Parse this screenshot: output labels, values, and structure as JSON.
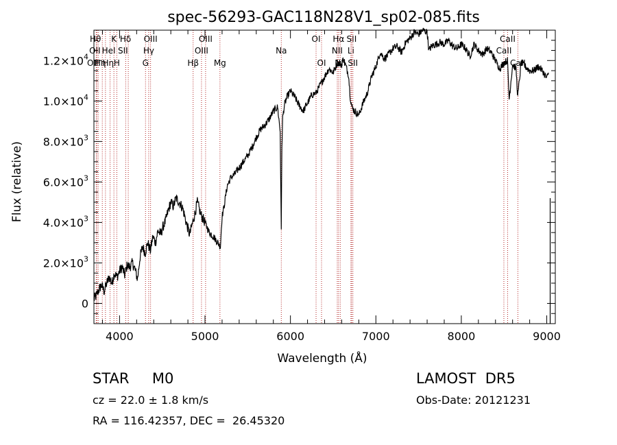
{
  "chart_data": {
    "type": "line",
    "title": "spec-56293-GAC118N28V1_sp02-085.fits",
    "xlabel": "Wavelength (Å)",
    "ylabel": "Flux (relative)",
    "xlim": [
      3700,
      9100
    ],
    "ylim": [
      -1000,
      13500
    ],
    "x_ticks": [
      {
        "value": 4000,
        "label": "4000"
      },
      {
        "value": 5000,
        "label": "5000"
      },
      {
        "value": 6000,
        "label": "6000"
      },
      {
        "value": 7000,
        "label": "7000"
      },
      {
        "value": 8000,
        "label": "8000"
      },
      {
        "value": 9000,
        "label": "9000"
      }
    ],
    "y_ticks": [
      {
        "value": 0,
        "mantissa": "0",
        "exponent": ""
      },
      {
        "value": 2000,
        "mantissa": "2.0×10",
        "exponent": "3"
      },
      {
        "value": 4000,
        "mantissa": "4.0×10",
        "exponent": "3"
      },
      {
        "value": 6000,
        "mantissa": "6.0×10",
        "exponent": "3"
      },
      {
        "value": 8000,
        "mantissa": "8.0×10",
        "exponent": "3"
      },
      {
        "value": 10000,
        "mantissa": "1.0×10",
        "exponent": "4"
      },
      {
        "value": 12000,
        "mantissa": "1.2×10",
        "exponent": "4"
      }
    ],
    "grid": false,
    "line_color": "#000000",
    "marker_line_color": "#b22222",
    "spectrum": {
      "x": [
        3700,
        3730,
        3760,
        3790,
        3820,
        3850,
        3880,
        3910,
        3940,
        3970,
        4000,
        4030,
        4060,
        4090,
        4120,
        4150,
        4180,
        4210,
        4240,
        4270,
        4300,
        4330,
        4360,
        4390,
        4420,
        4450,
        4480,
        4510,
        4540,
        4570,
        4600,
        4630,
        4660,
        4700,
        4740,
        4780,
        4820,
        4850,
        4880,
        4910,
        4950,
        5000,
        5050,
        5100,
        5150,
        5180,
        5200,
        5220,
        5260,
        5300,
        5350,
        5400,
        5450,
        5500,
        5550,
        5600,
        5650,
        5700,
        5750,
        5800,
        5850,
        5880,
        5893,
        5900,
        5910,
        5930,
        5960,
        6000,
        6050,
        6100,
        6150,
        6200,
        6250,
        6300,
        6350,
        6400,
        6450,
        6500,
        6550,
        6600,
        6620,
        6650,
        6680,
        6700,
        6720,
        6750,
        6800,
        6850,
        6900,
        6950,
        7000,
        7050,
        7100,
        7150,
        7200,
        7250,
        7300,
        7350,
        7400,
        7450,
        7500,
        7550,
        7600,
        7620,
        7650,
        7700,
        7750,
        7800,
        7850,
        7900,
        7950,
        8000,
        8050,
        8100,
        8150,
        8200,
        8250,
        8300,
        8350,
        8400,
        8450,
        8500,
        8540,
        8560,
        8600,
        8640,
        8660,
        8700,
        8750,
        8800,
        8850,
        8900,
        8950,
        9000,
        9020
      ],
      "y": [
        200,
        400,
        700,
        900,
        600,
        1000,
        1300,
        1000,
        1500,
        1300,
        1600,
        1800,
        1400,
        1900,
        1800,
        2000,
        1700,
        1200,
        2300,
        2800,
        2500,
        3000,
        2600,
        3300,
        3000,
        3600,
        3400,
        3800,
        4100,
        4600,
        5000,
        4800,
        5200,
        5000,
        4700,
        4000,
        3400,
        3900,
        4400,
        5000,
        4400,
        4000,
        3500,
        3300,
        3000,
        2800,
        4300,
        4700,
        5800,
        6200,
        6400,
        6700,
        7000,
        7300,
        7700,
        8200,
        8600,
        8800,
        9100,
        9500,
        9700,
        8500,
        3500,
        7800,
        9200,
        9800,
        10200,
        10500,
        10200,
        9800,
        9500,
        9900,
        10300,
        10400,
        10800,
        11200,
        11600,
        11400,
        11900,
        11800,
        12100,
        11700,
        11300,
        10200,
        9700,
        9500,
        9300,
        9900,
        10400,
        11200,
        11700,
        12400,
        12100,
        12300,
        12600,
        12700,
        12400,
        12900,
        13100,
        13400,
        13300,
        13500,
        13400,
        12500,
        12700,
        12800,
        12900,
        12800,
        13000,
        12700,
        12600,
        12800,
        12600,
        12200,
        12800,
        12500,
        12300,
        12600,
        12400,
        12000,
        11600,
        11900,
        12000,
        10100,
        11800,
        11600,
        10200,
        11900,
        11700,
        11500,
        11500,
        11700,
        11500,
        11100,
        11400
      ]
    },
    "line_markers": [
      {
        "x": 3750,
        "label": "Hθ",
        "row": 0,
        "dx": -4
      },
      {
        "x": 3727,
        "label": "OII",
        "row": 1,
        "dx": -2
      },
      {
        "x": 3734,
        "label": "OII",
        "row": 2,
        "dx": -6
      },
      {
        "x": 3798,
        "label": "Hη",
        "row": 2,
        "dx": -3
      },
      {
        "x": 3835,
        "label": "Hη",
        "row": 2,
        "dx": 4
      },
      {
        "x": 3889,
        "label": "HeI",
        "row": 1,
        "dx": -2
      },
      {
        "x": 3934,
        "label": "K",
        "row": 0,
        "dx": 0
      },
      {
        "x": 3968,
        "label": "H",
        "row": 2,
        "dx": 0
      },
      {
        "x": 4072,
        "label": "SII",
        "row": 1,
        "dx": -4
      },
      {
        "x": 4102,
        "label": "Hδ",
        "row": 0,
        "dx": -4
      },
      {
        "x": 4304,
        "label": "G",
        "row": 2,
        "dx": 0
      },
      {
        "x": 4341,
        "label": "Hγ",
        "row": 1,
        "dx": 0
      },
      {
        "x": 4363,
        "label": "OIII",
        "row": 0,
        "dx": 0
      },
      {
        "x": 4861,
        "label": "Hβ",
        "row": 2,
        "dx": 0
      },
      {
        "x": 4959,
        "label": "OIII",
        "row": 1,
        "dx": 0
      },
      {
        "x": 5007,
        "label": "OIII",
        "row": 0,
        "dx": 0
      },
      {
        "x": 5175,
        "label": "Mg",
        "row": 2,
        "dx": 0
      },
      {
        "x": 5893,
        "label": "Na",
        "row": 1,
        "dx": 0
      },
      {
        "x": 6300,
        "label": "OI",
        "row": 0,
        "dx": 0
      },
      {
        "x": 6364,
        "label": "OI",
        "row": 2,
        "dx": 0
      },
      {
        "x": 6548,
        "label": "NII",
        "row": 1,
        "dx": 0
      },
      {
        "x": 6563,
        "label": "Hα",
        "row": 0,
        "dx": 0
      },
      {
        "x": 6583,
        "label": "NII",
        "row": 2,
        "dx": 0
      },
      {
        "x": 6708,
        "label": "Li",
        "row": 1,
        "dx": 0
      },
      {
        "x": 6716,
        "label": "SII",
        "row": 0,
        "dx": 0
      },
      {
        "x": 6731,
        "label": "SII",
        "row": 2,
        "dx": 0
      },
      {
        "x": 8498,
        "label": "CaII",
        "row": 1,
        "dx": 0
      },
      {
        "x": 8542,
        "label": "CaII",
        "row": 0,
        "dx": 0
      },
      {
        "x": 8662,
        "label": "CaII",
        "row": 2,
        "dx": 0
      }
    ]
  },
  "info": {
    "class": "STAR     M0",
    "survey": "LAMOST  DR5",
    "cz": "cz = 22.0 ± 1.8 km/s",
    "obs_date": "Obs-Date: 20121231",
    "radec": "RA = 116.42357, DEC =  26.45320"
  }
}
